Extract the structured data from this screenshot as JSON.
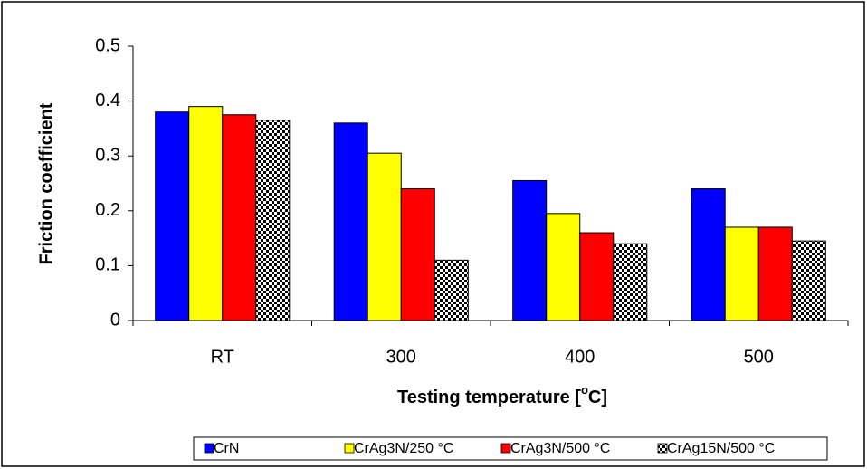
{
  "chart_data": {
    "type": "bar",
    "x_label": [
      "Testing temperature [",
      "o",
      "C]"
    ],
    "y_label": "Friction coefficient",
    "categories": [
      "RT",
      "300",
      "400",
      "500"
    ],
    "series": [
      {
        "name": "CrN",
        "color": "#0000ff",
        "values": [
          0.38,
          0.36,
          0.255,
          0.24
        ]
      },
      {
        "name": "CrAg3N/250 °C",
        "color": "#ffff00",
        "values": [
          0.39,
          0.305,
          0.195,
          0.17
        ]
      },
      {
        "name": "CrAg3N/500 °C",
        "color": "#ff0000",
        "values": [
          0.375,
          0.24,
          0.16,
          0.17
        ]
      },
      {
        "name": "CrAg15N/500 °C",
        "color": "#000000",
        "pattern": true,
        "values": [
          0.365,
          0.11,
          0.14,
          0.145
        ]
      }
    ],
    "ylim": [
      0,
      0.5
    ],
    "yticks": [
      0,
      0.1,
      0.2,
      0.3,
      0.4,
      0.5
    ],
    "legend": "bottom"
  }
}
